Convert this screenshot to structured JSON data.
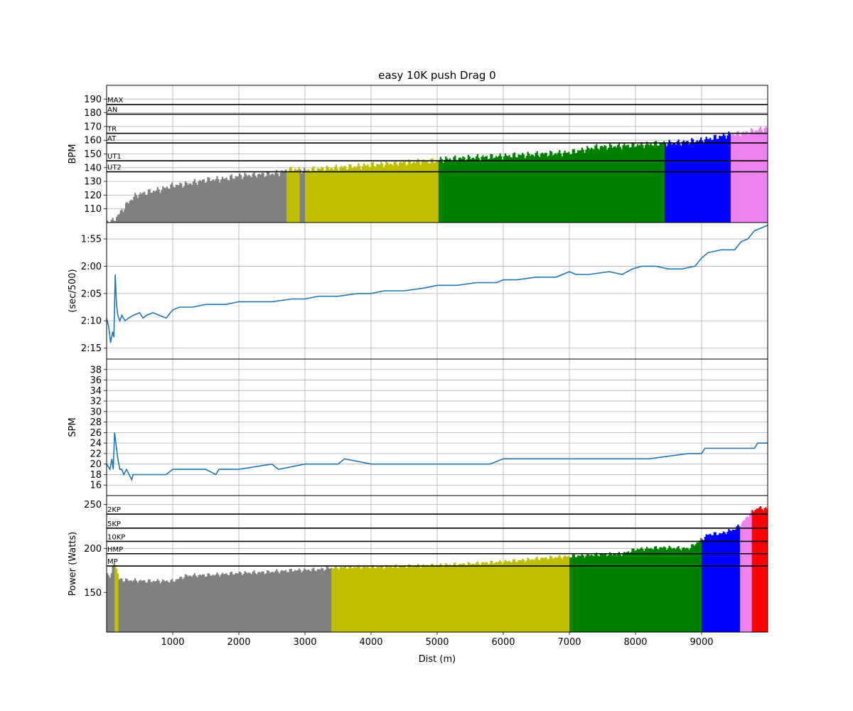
{
  "chart_data": [
    {
      "type": "bar",
      "title": "easy 10K push Drag 0",
      "ylabel": "BPM",
      "xlim": [
        0,
        10000
      ],
      "ylim": [
        100,
        200
      ],
      "yticks": [
        110,
        120,
        130,
        140,
        150,
        160,
        170,
        180,
        190
      ],
      "grid": true,
      "zone_lines": [
        {
          "name": "MAX",
          "value": 186
        },
        {
          "name": "AN",
          "value": 179
        },
        {
          "name": "TR",
          "value": 165
        },
        {
          "name": "AT",
          "value": 158
        },
        {
          "name": "UT1",
          "value": 145
        },
        {
          "name": "UT2",
          "value": 137
        }
      ],
      "segments": [
        {
          "x0": 0,
          "x1": 2730,
          "color": "#808080"
        },
        {
          "x0": 2730,
          "x1": 2930,
          "color": "#bfbf00"
        },
        {
          "x0": 2930,
          "x1": 3000,
          "color": "#808080"
        },
        {
          "x0": 3000,
          "x1": 5030,
          "color": "#bfbf00"
        },
        {
          "x0": 5030,
          "x1": 8440,
          "color": "#008000"
        },
        {
          "x0": 8440,
          "x1": 9440,
          "color": "#0000ff"
        },
        {
          "x0": 9440,
          "x1": 10000,
          "color": "#ee82ee"
        }
      ],
      "series": [
        {
          "x": [
            90,
            150,
            250,
            350,
            450,
            600,
            800,
            1000,
            1200,
            1500,
            1800,
            2000,
            2300,
            2600,
            2720,
            2850,
            3000,
            3200,
            3500,
            3800,
            4000,
            4300,
            4600,
            5000,
            5050,
            5400,
            5800,
            6200,
            6600,
            7000,
            7400,
            7800,
            8200,
            8440,
            8600,
            8800,
            9000,
            9200,
            9400,
            9440,
            9600,
            9800,
            10000
          ],
          "values": [
            101,
            104,
            110,
            116,
            120,
            122,
            124,
            127,
            128,
            131,
            132,
            134,
            135,
            136,
            138,
            139,
            138,
            139,
            140,
            141,
            142,
            143,
            144,
            145,
            146,
            147,
            148,
            149,
            150,
            151,
            155,
            156,
            157,
            158,
            158,
            159,
            160,
            162,
            164,
            164,
            165,
            167,
            169
          ]
        }
      ]
    },
    {
      "type": "line",
      "ylabel": "(sec/500)",
      "xlim": [
        0,
        10000
      ],
      "ylim": [
        137,
        112
      ],
      "yticks": [
        115,
        120,
        125,
        130,
        135
      ],
      "yticklabels": [
        "1:55",
        "2:00",
        "2:05",
        "2:10",
        "2:15"
      ],
      "grid": true,
      "series": [
        {
          "color": "#1f77b4",
          "x": [
            0,
            30,
            60,
            90,
            110,
            130,
            150,
            170,
            200,
            230,
            280,
            330,
            400,
            500,
            550,
            600,
            700,
            800,
            900,
            1000,
            1100,
            1200,
            1300,
            1500,
            1600,
            1700,
            1800,
            2000,
            2200,
            2500,
            2800,
            3000,
            3200,
            3500,
            3800,
            4000,
            4200,
            4500,
            4800,
            5000,
            5300,
            5600,
            5900,
            6000,
            6200,
            6500,
            6800,
            7000,
            7100,
            7300,
            7600,
            7800,
            7950,
            8100,
            8300,
            8500,
            8700,
            8900,
            9000,
            9100,
            9300,
            9500,
            9600,
            9700,
            9800,
            9900,
            10000
          ],
          "values": [
            129.5,
            131,
            134,
            132,
            133,
            121.5,
            127,
            129,
            130,
            129,
            130,
            129.5,
            129,
            128.5,
            129.5,
            129,
            128.5,
            129,
            129.5,
            128,
            127.5,
            127.5,
            127.5,
            127,
            127,
            127,
            127,
            126.5,
            126.5,
            126.5,
            126,
            126,
            125.5,
            125.5,
            125,
            125,
            124.5,
            124.5,
            124,
            123.5,
            123.5,
            123,
            123,
            122.5,
            122.5,
            122,
            122,
            121,
            121.5,
            121.5,
            121,
            121.5,
            120.5,
            120,
            120,
            120.5,
            120.5,
            120,
            118.5,
            117.5,
            117,
            117,
            115.5,
            115,
            113.5,
            113,
            112.5
          ]
        }
      ]
    },
    {
      "type": "line",
      "ylabel": "SPM",
      "xlim": [
        0,
        10000
      ],
      "ylim": [
        14,
        40
      ],
      "yticks": [
        16,
        18,
        20,
        22,
        24,
        26,
        28,
        30,
        32,
        34,
        36,
        38
      ],
      "grid": true,
      "series": [
        {
          "color": "#1f77b4",
          "x": [
            0,
            50,
            80,
            100,
            120,
            150,
            170,
            200,
            230,
            260,
            300,
            380,
            400,
            900,
            1000,
            1500,
            1650,
            1700,
            2000,
            2500,
            2600,
            3000,
            3500,
            3600,
            4000,
            4500,
            5000,
            5050,
            5400,
            5800,
            6000,
            6800,
            7000,
            8000,
            8200,
            8800,
            9000,
            9050,
            9400,
            9500,
            9800,
            9850,
            9950,
            10000
          ],
          "values": [
            20,
            19,
            21,
            19,
            26,
            23,
            21,
            19,
            19,
            18,
            19,
            17,
            18,
            18,
            19,
            19,
            18,
            19,
            19,
            20,
            19,
            20,
            20,
            21,
            20,
            20,
            20,
            20,
            20,
            20,
            21,
            21,
            21,
            21,
            21,
            22,
            22,
            23,
            23,
            23,
            23,
            24,
            24,
            24
          ]
        }
      ]
    },
    {
      "type": "bar",
      "ylabel": "Power (Watts)",
      "xlabel": "Dist (m)",
      "xlim": [
        0,
        10000
      ],
      "ylim": [
        105,
        260
      ],
      "yticks": [
        150,
        200,
        250
      ],
      "xticks": [
        1000,
        2000,
        3000,
        4000,
        5000,
        6000,
        7000,
        8000,
        9000
      ],
      "grid": true,
      "zone_lines": [
        {
          "name": "2KP",
          "value": 239
        },
        {
          "name": "5KP",
          "value": 223
        },
        {
          "name": "10KP",
          "value": 208
        },
        {
          "name": "HMP",
          "value": 194
        },
        {
          "name": "MP",
          "value": 180
        }
      ],
      "segments": [
        {
          "x0": 0,
          "x1": 120,
          "color": "#808080"
        },
        {
          "x0": 120,
          "x1": 190,
          "color": "#bfbf00"
        },
        {
          "x0": 190,
          "x1": 3400,
          "color": "#808080"
        },
        {
          "x0": 3400,
          "x1": 5030,
          "color": "#bfbf00"
        },
        {
          "x0": 5030,
          "x1": 7010,
          "color": "#bfbf00"
        },
        {
          "x0": 7010,
          "x1": 8010,
          "color": "#008000"
        },
        {
          "x0": 8010,
          "x1": 9000,
          "color": "#008000"
        },
        {
          "x0": 9000,
          "x1": 9580,
          "color": "#0000ff"
        },
        {
          "x0": 9580,
          "x1": 9760,
          "color": "#ee82ee"
        },
        {
          "x0": 9760,
          "x1": 10000,
          "color": "#ff0000"
        }
      ],
      "series": [
        {
          "x": [
            0,
            60,
            120,
            190,
            300,
            600,
            1000,
            1200,
            1600,
            2000,
            2400,
            2800,
            3200,
            3400,
            3800,
            4200,
            4600,
            5000,
            5400,
            5800,
            6200,
            6600,
            7000,
            7400,
            7800,
            8000,
            8400,
            8800,
            9000,
            9100,
            9300,
            9500,
            9600,
            9760,
            9850,
            10000
          ],
          "values": [
            172,
            168,
            186,
            165,
            164,
            163,
            163,
            169,
            170,
            172,
            173,
            175,
            176,
            178,
            179,
            179,
            180,
            181,
            182,
            184,
            186,
            189,
            191,
            193,
            194,
            199,
            201,
            200,
            210,
            216,
            217,
            222,
            228,
            242,
            246,
            245
          ]
        }
      ]
    }
  ]
}
